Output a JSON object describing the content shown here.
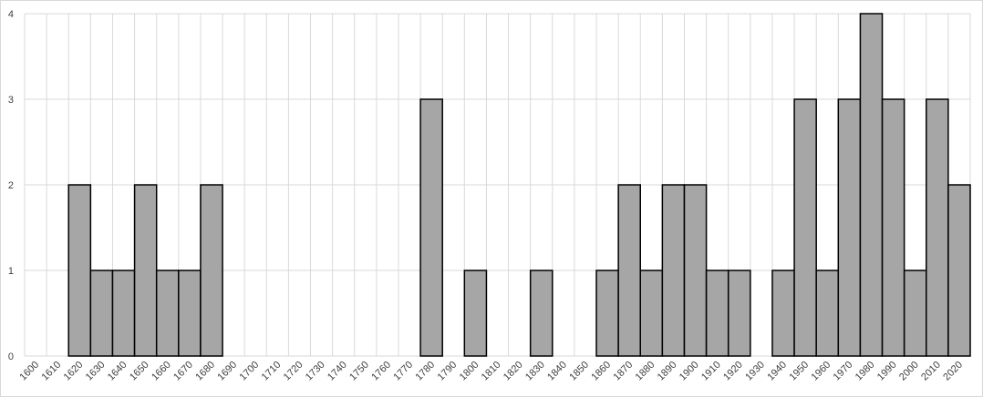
{
  "chart_data": {
    "type": "bar",
    "categories": [
      "1600",
      "1610",
      "1620",
      "1630",
      "1640",
      "1650",
      "1660",
      "1670",
      "1680",
      "1690",
      "1700",
      "1710",
      "1720",
      "1730",
      "1740",
      "1750",
      "1760",
      "1770",
      "1780",
      "1790",
      "1800",
      "1810",
      "1820",
      "1830",
      "1840",
      "1850",
      "1860",
      "1870",
      "1880",
      "1890",
      "1900",
      "1910",
      "1920",
      "1930",
      "1940",
      "1950",
      "1960",
      "1970",
      "1980",
      "1990",
      "2000",
      "2010",
      "2020"
    ],
    "values": [
      0,
      0,
      2,
      1,
      1,
      2,
      1,
      1,
      2,
      0,
      0,
      0,
      0,
      0,
      0,
      0,
      0,
      0,
      3,
      0,
      1,
      0,
      0,
      1,
      0,
      0,
      1,
      2,
      1,
      2,
      2,
      1,
      1,
      0,
      1,
      3,
      1,
      3,
      4,
      3,
      1,
      3,
      2
    ],
    "color": "#a6a6a6",
    "ylim": [
      0,
      4
    ],
    "yticks": [
      0,
      1,
      2,
      3,
      4
    ],
    "grid": true
  }
}
